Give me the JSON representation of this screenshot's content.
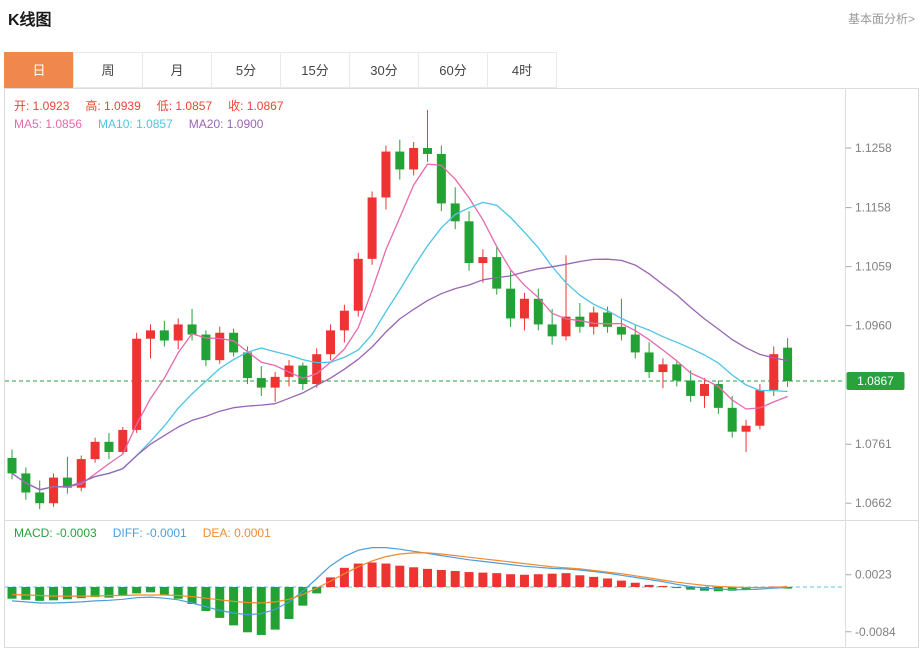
{
  "page": {
    "title": "K线图",
    "analysis_link": "基本面分析>"
  },
  "tabs": {
    "items": [
      {
        "key": "day",
        "label": "日",
        "active": true
      },
      {
        "key": "week",
        "label": "周",
        "active": false
      },
      {
        "key": "month",
        "label": "月",
        "active": false
      },
      {
        "key": "5min",
        "label": "5分",
        "active": false
      },
      {
        "key": "15min",
        "label": "15分",
        "active": false
      },
      {
        "key": "30min",
        "label": "30分",
        "active": false
      },
      {
        "key": "60min",
        "label": "60分",
        "active": false
      },
      {
        "key": "4hour",
        "label": "4时",
        "active": false
      }
    ]
  },
  "legend": {
    "ohlc": [
      {
        "name": "open",
        "label": "开",
        "value": "1.0923",
        "color": "#f04438"
      },
      {
        "name": "high",
        "label": "高",
        "value": "1.0939",
        "color": "#f04438"
      },
      {
        "name": "low",
        "label": "低",
        "value": "1.0857",
        "color": "#f04438"
      },
      {
        "name": "close",
        "label": "收",
        "value": "1.0867",
        "color": "#f04438"
      }
    ],
    "ma": [
      {
        "name": "ma5",
        "label": "MA5",
        "value": "1.0856",
        "color": "#e669ae"
      },
      {
        "name": "ma10",
        "label": "MA10",
        "value": "1.0857",
        "color": "#4cc4e4"
      },
      {
        "name": "ma20",
        "label": "MA20",
        "value": "1.0900",
        "color": "#9a64b4"
      }
    ],
    "macd": [
      {
        "name": "macd",
        "label": "MACD",
        "value": "-0.0003",
        "color": "#27a23c"
      },
      {
        "name": "diff",
        "label": "DIFF",
        "value": "-0.0001",
        "color": "#4a9ee0"
      },
      {
        "name": "dea",
        "label": "DEA",
        "value": "0.0001",
        "color": "#f08a2e"
      }
    ]
  },
  "colors": {
    "up": "#ee3333",
    "down": "#22a135",
    "ma5": "#e669ae",
    "ma10": "#4cc4e4",
    "ma20": "#9a64b4",
    "diff": "#4a9ee0",
    "dea": "#f08a2e",
    "axis_text": "#808080",
    "border": "#dcdcdc",
    "tick": "#aaaaaa",
    "price_line": "#27a23c",
    "badge_bg": "#27a23c",
    "zero_line": "#5bc4e0",
    "tab_active_bg": "#f0884e"
  },
  "chart_data": [
    {
      "type": "candlestick",
      "title": "K线图 (日)",
      "ylabel": "price",
      "ylim": [
        1.0634,
        1.1347
      ],
      "yticks": [
        1.1258,
        1.1158,
        1.1059,
        1.096,
        1.0761,
        1.0662
      ],
      "current_price": 1.0867,
      "ma_periods": [
        5,
        10,
        20
      ],
      "candles": [
        [
          1.0738,
          1.0752,
          1.0702,
          1.0712
        ],
        [
          1.0712,
          1.0722,
          1.0668,
          1.068
        ],
        [
          1.068,
          1.07,
          1.0652,
          1.0662
        ],
        [
          1.0662,
          1.0712,
          1.0656,
          1.0705
        ],
        [
          1.0705,
          1.074,
          1.0678,
          1.0688
        ],
        [
          1.0688,
          1.0742,
          1.0682,
          1.0736
        ],
        [
          1.0736,
          1.0772,
          1.073,
          1.0765
        ],
        [
          1.0765,
          1.078,
          1.0736,
          1.0748
        ],
        [
          1.0748,
          1.079,
          1.0744,
          1.0785
        ],
        [
          1.0785,
          1.0948,
          1.078,
          1.0938
        ],
        [
          1.0938,
          1.0962,
          1.0905,
          1.0952
        ],
        [
          1.0952,
          1.0968,
          1.0925,
          1.0935
        ],
        [
          1.0935,
          1.0972,
          1.092,
          1.0962
        ],
        [
          1.0962,
          1.0988,
          1.0935,
          1.0945
        ],
        [
          1.0945,
          1.0952,
          1.0892,
          1.0902
        ],
        [
          1.0902,
          1.0958,
          1.0896,
          1.0948
        ],
        [
          1.0948,
          1.0955,
          1.0908,
          1.0915
        ],
        [
          1.0915,
          1.0925,
          1.0862,
          1.0872
        ],
        [
          1.0872,
          1.0892,
          1.0842,
          1.0856
        ],
        [
          1.0856,
          1.0882,
          1.0832,
          1.0874
        ],
        [
          1.0874,
          1.0902,
          1.0858,
          1.0893
        ],
        [
          1.0893,
          1.0898,
          1.0852,
          1.0862
        ],
        [
          1.0862,
          1.0922,
          1.0856,
          1.0912
        ],
        [
          1.0912,
          1.0962,
          1.0902,
          1.0952
        ],
        [
          1.0952,
          1.0995,
          1.0932,
          1.0985
        ],
        [
          1.0985,
          1.1082,
          1.0975,
          1.1072
        ],
        [
          1.1072,
          1.1185,
          1.1062,
          1.1175
        ],
        [
          1.1175,
          1.1262,
          1.1155,
          1.1252
        ],
        [
          1.1252,
          1.1272,
          1.1205,
          1.1222
        ],
        [
          1.1222,
          1.1268,
          1.1212,
          1.1258
        ],
        [
          1.1258,
          1.1322,
          1.1235,
          1.1248
        ],
        [
          1.1248,
          1.1262,
          1.1152,
          1.1165
        ],
        [
          1.1165,
          1.1192,
          1.1122,
          1.1135
        ],
        [
          1.1135,
          1.1152,
          1.1052,
          1.1065
        ],
        [
          1.1065,
          1.1088,
          1.1032,
          1.1075
        ],
        [
          1.1075,
          1.1092,
          1.1012,
          1.1022
        ],
        [
          1.1022,
          1.1052,
          1.0958,
          1.0972
        ],
        [
          1.0972,
          1.1015,
          1.0952,
          1.1005
        ],
        [
          1.1005,
          1.1022,
          1.0952,
          1.0962
        ],
        [
          1.0962,
          1.0988,
          1.0928,
          1.0942
        ],
        [
          1.0942,
          1.1078,
          1.0935,
          1.0975
        ],
        [
          1.0975,
          1.0998,
          1.0948,
          1.0958
        ],
        [
          1.0958,
          1.0992,
          1.0945,
          1.0982
        ],
        [
          1.0982,
          1.0992,
          1.0948,
          1.0958
        ],
        [
          1.0958,
          1.1005,
          1.0935,
          1.0945
        ],
        [
          1.0945,
          1.0962,
          1.0905,
          1.0915
        ],
        [
          1.0915,
          1.0932,
          1.0872,
          1.0882
        ],
        [
          1.0882,
          1.0905,
          1.0855,
          1.0895
        ],
        [
          1.0895,
          1.09,
          1.0858,
          1.0868
        ],
        [
          1.0868,
          1.0885,
          1.0832,
          1.0842
        ],
        [
          1.0842,
          1.0872,
          1.0822,
          1.0862
        ],
        [
          1.0862,
          1.0868,
          1.0812,
          1.0822
        ],
        [
          1.0822,
          1.0842,
          1.0772,
          1.0782
        ],
        [
          1.0782,
          1.0802,
          1.0748,
          1.0792
        ],
        [
          1.0792,
          1.0862,
          1.0786,
          1.0852
        ],
        [
          1.0852,
          1.0925,
          1.0842,
          1.0912
        ],
        [
          1.0923,
          1.0939,
          1.0857,
          1.0867
        ]
      ]
    },
    {
      "type": "bar",
      "title": "MACD",
      "yticks": [
        0.0023,
        -0.0084
      ],
      "histogram": [
        -0.0022,
        -0.0024,
        -0.0026,
        -0.0025,
        -0.0023,
        -0.0021,
        -0.0019,
        -0.002,
        -0.0016,
        -0.0012,
        -0.001,
        -0.0014,
        -0.0022,
        -0.0032,
        -0.0045,
        -0.0058,
        -0.0072,
        -0.0085,
        -0.009,
        -0.008,
        -0.006,
        -0.0035,
        -0.0012,
        0.0018,
        0.0036,
        0.0044,
        0.0046,
        0.0044,
        0.004,
        0.0037,
        0.0034,
        0.0032,
        0.003,
        0.0028,
        0.0027,
        0.0026,
        0.0024,
        0.0023,
        0.0024,
        0.0025,
        0.0026,
        0.0022,
        0.0019,
        0.0016,
        0.0012,
        0.0008,
        0.0004,
        0.0002,
        -0.0002,
        -0.0005,
        -0.0007,
        -0.0008,
        -0.0007,
        -0.0005,
        -0.0002,
        0.0001,
        -0.0003
      ],
      "series": [
        {
          "name": "DIFF",
          "values": [
            -0.0026,
            -0.0028,
            -0.003,
            -0.003,
            -0.0029,
            -0.0028,
            -0.0026,
            -0.0025,
            -0.0023,
            -0.002,
            -0.0019,
            -0.0021,
            -0.0024,
            -0.003,
            -0.0037,
            -0.0044,
            -0.0049,
            -0.0052,
            -0.005,
            -0.0042,
            -0.0028,
            -0.0008,
            0.0016,
            0.004,
            0.0057,
            0.0069,
            0.0074,
            0.0074,
            0.0071,
            0.0067,
            0.0063,
            0.0059,
            0.0055,
            0.0051,
            0.0048,
            0.0045,
            0.0042,
            0.0039,
            0.0037,
            0.0035,
            0.0034,
            0.0032,
            0.0029,
            0.0026,
            0.0022,
            0.0018,
            0.0014,
            0.001,
            0.0005,
            0.0001,
            -0.0002,
            -0.0004,
            -0.0005,
            -0.0005,
            -0.0004,
            -0.0002,
            -0.0001
          ]
        },
        {
          "name": "DEA",
          "values": [
            -0.0014,
            -0.0015,
            -0.0016,
            -0.0017,
            -0.0017,
            -0.0017,
            -0.0017,
            -0.0016,
            -0.0016,
            -0.0015,
            -0.0015,
            -0.0015,
            -0.0016,
            -0.0018,
            -0.0021,
            -0.0024,
            -0.0027,
            -0.0029,
            -0.003,
            -0.0028,
            -0.0023,
            -0.0014,
            -0.0002,
            0.0011,
            0.0025,
            0.0038,
            0.0049,
            0.0057,
            0.0062,
            0.0064,
            0.0064,
            0.0062,
            0.0059,
            0.0056,
            0.0053,
            0.005,
            0.0047,
            0.0044,
            0.0041,
            0.0038,
            0.0036,
            0.0034,
            0.0031,
            0.0028,
            0.0025,
            0.0021,
            0.0017,
            0.0013,
            0.0009,
            0.0006,
            0.0003,
            0.0001,
            0.0,
            -0.0001,
            -0.0001,
            -0.0001,
            0.0001
          ]
        }
      ]
    }
  ]
}
